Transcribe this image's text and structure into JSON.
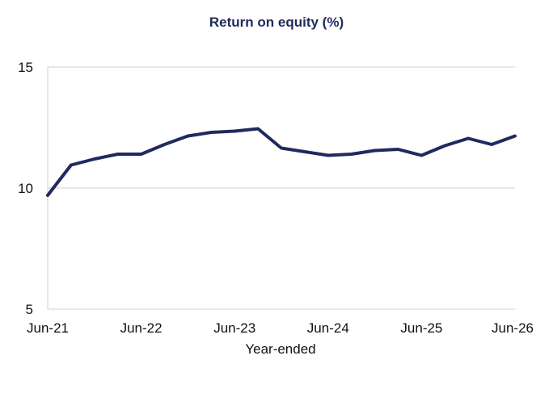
{
  "chart_data": {
    "type": "line",
    "title": "Return on equity (%)",
    "xlabel": "Year-ended",
    "ylabel": "",
    "x_tick_labels": [
      "Jun-21",
      "Jun-22",
      "Jun-23",
      "Jun-24",
      "Jun-25",
      "Jun-26"
    ],
    "y_tick_labels": [
      "5",
      "10",
      "15"
    ],
    "ylim": [
      5,
      15
    ],
    "grid": true,
    "legend": "none",
    "x": [
      "Jun-21",
      "Sep-21",
      "Dec-21",
      "Mar-22",
      "Jun-22",
      "Sep-22",
      "Dec-22",
      "Mar-23",
      "Jun-23",
      "Sep-23",
      "Dec-23",
      "Mar-24",
      "Jun-24",
      "Sep-24",
      "Dec-24",
      "Mar-25",
      "Jun-25",
      "Sep-25",
      "Dec-25",
      "Mar-26",
      "Jun-26"
    ],
    "series": [
      {
        "color": "#1f2a5e",
        "values": [
          9.7,
          10.95,
          11.2,
          11.4,
          11.4,
          11.8,
          12.15,
          12.3,
          12.35,
          12.45,
          11.65,
          11.5,
          11.35,
          11.4,
          11.55,
          11.6,
          11.35,
          11.75,
          12.05,
          11.8,
          12.15
        ]
      }
    ],
    "colors": {
      "title": "#1f2a5e",
      "gridline": "#d0d0d0",
      "axis": "#d0d0d0"
    }
  }
}
